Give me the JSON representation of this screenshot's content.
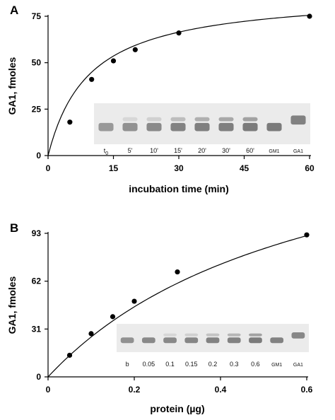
{
  "panels": [
    {
      "id": "A",
      "letter": "A",
      "chart_data": {
        "type": "scatter",
        "xlabel": "incubation time (min)",
        "ylabel": "GA1, fmoles",
        "xlim": [
          0,
          60
        ],
        "ylim": [
          0,
          75
        ],
        "xticks": [
          0,
          15,
          30,
          45,
          60
        ],
        "yticks": [
          0,
          25,
          50,
          75
        ],
        "points": [
          {
            "x": 5,
            "y": 18
          },
          {
            "x": 10,
            "y": 41
          },
          {
            "x": 15,
            "y": 51
          },
          {
            "x": 20,
            "y": 57
          },
          {
            "x": 30,
            "y": 66
          },
          {
            "x": 60,
            "y": 75
          }
        ],
        "fit": {
          "model": "hyperbola",
          "vmax": 87.5,
          "k": 9.5,
          "x0": 0,
          "x1": 60
        }
      },
      "gel": {
        "lanes": [
          {
            "label": "t",
            "sub": "0",
            "band": 0.55,
            "upper": 0.0
          },
          {
            "label": "5'",
            "sub": "",
            "band": 0.6,
            "upper": 0.15
          },
          {
            "label": "10'",
            "sub": "",
            "band": 0.65,
            "upper": 0.2
          },
          {
            "label": "15'",
            "sub": "",
            "band": 0.7,
            "upper": 0.35
          },
          {
            "label": "20'",
            "sub": "",
            "band": 0.72,
            "upper": 0.45
          },
          {
            "label": "30'",
            "sub": "",
            "band": 0.72,
            "upper": 0.5
          },
          {
            "label": "60'",
            "sub": "",
            "band": 0.75,
            "upper": 0.55
          },
          {
            "label": "GM1",
            "sub": "",
            "band": 0.75,
            "upper": 0.0
          },
          {
            "label": "GA1",
            "sub": "",
            "band": 0.0,
            "upper": 0.8
          }
        ]
      }
    },
    {
      "id": "B",
      "letter": "B",
      "chart_data": {
        "type": "scatter",
        "xlabel": "protein (µg)",
        "ylabel": "GA1, fmoles",
        "xlim": [
          0,
          0.6
        ],
        "ylim": [
          0,
          93
        ],
        "xticks": [
          0,
          0.2,
          0.4,
          0.6
        ],
        "xticklabels": [
          "0",
          "0.2",
          "0.4",
          "0.6"
        ],
        "yticks": [
          0,
          31,
          62,
          93
        ],
        "points": [
          {
            "x": 0.05,
            "y": 14
          },
          {
            "x": 0.1,
            "y": 28
          },
          {
            "x": 0.15,
            "y": 39
          },
          {
            "x": 0.2,
            "y": 49
          },
          {
            "x": 0.3,
            "y": 68
          },
          {
            "x": 0.6,
            "y": 92
          }
        ],
        "fit": {
          "model": "hyperbola",
          "vmax": 186,
          "k": 0.62,
          "x0": 0,
          "x1": 0.6
        }
      },
      "gel": {
        "lanes": [
          {
            "label": "b",
            "sub": "",
            "band": 0.6,
            "upper": 0.0
          },
          {
            "label": "0.05",
            "sub": "",
            "band": 0.65,
            "upper": 0.0
          },
          {
            "label": "0.1",
            "sub": "",
            "band": 0.65,
            "upper": 0.15
          },
          {
            "label": "0.15",
            "sub": "",
            "band": 0.68,
            "upper": 0.2
          },
          {
            "label": "0.2",
            "sub": "",
            "band": 0.7,
            "upper": 0.3
          },
          {
            "label": "0.3",
            "sub": "",
            "band": 0.7,
            "upper": 0.4
          },
          {
            "label": "0.6",
            "sub": "",
            "band": 0.75,
            "upper": 0.55
          },
          {
            "label": "GM1",
            "sub": "",
            "band": 0.7,
            "upper": 0.0
          },
          {
            "label": "GA1",
            "sub": "",
            "band": 0.0,
            "upper": 0.75
          }
        ]
      }
    }
  ]
}
